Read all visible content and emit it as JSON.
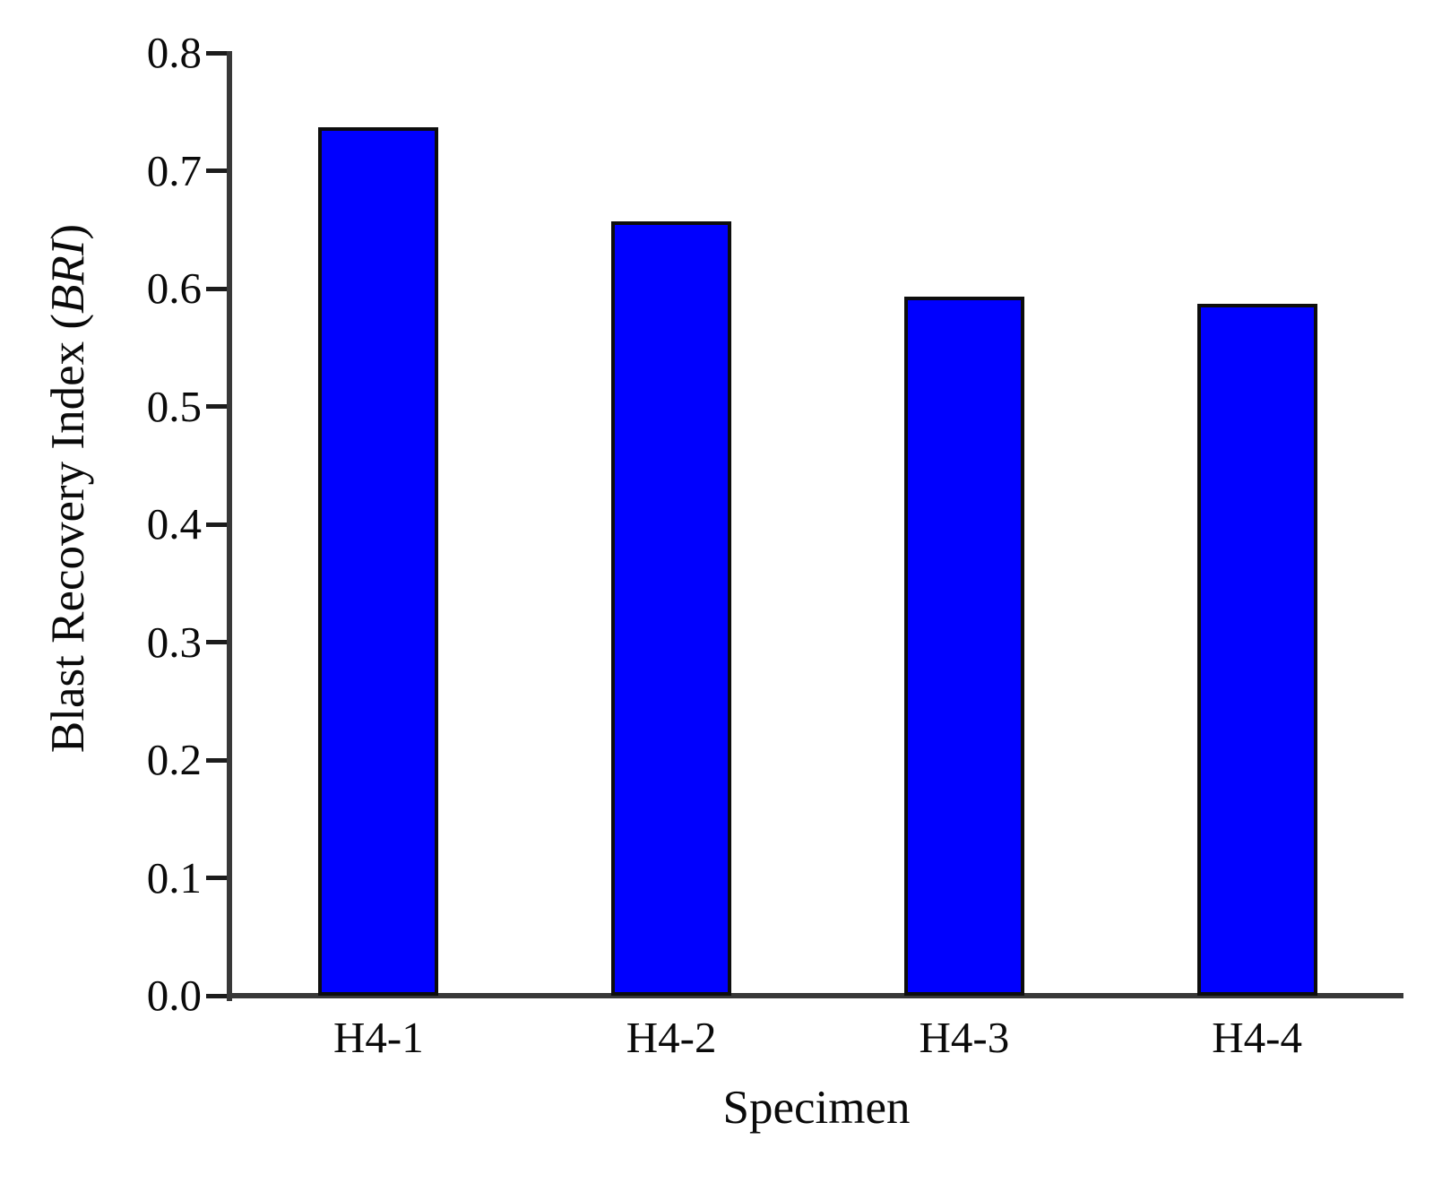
{
  "chart_data": {
    "type": "bar",
    "title": "",
    "categories": [
      "H4-1",
      "H4-2",
      "H4-3",
      "H4-4"
    ],
    "values": [
      0.737,
      0.657,
      0.593,
      0.587
    ],
    "xlabel": "Specimen",
    "ylabel": "Blast Recovery Index (BRI)",
    "ylabel_parts": {
      "prefix": "Blast Recovery Index (",
      "italic": "BRI",
      "suffix": ")"
    },
    "ylim": [
      0.0,
      0.8
    ],
    "ytick_step": 0.1,
    "yticks": [
      "0.0",
      "0.1",
      "0.2",
      "0.3",
      "0.4",
      "0.5",
      "0.6",
      "0.7",
      "0.8"
    ],
    "grid": false,
    "legend": "none",
    "colors": {
      "bar_fill": "#0000FE",
      "bar_border": "#0D0D0D",
      "axis_line": "#383838",
      "text": "#0A0A0A",
      "background": "#FFFFFF"
    }
  }
}
